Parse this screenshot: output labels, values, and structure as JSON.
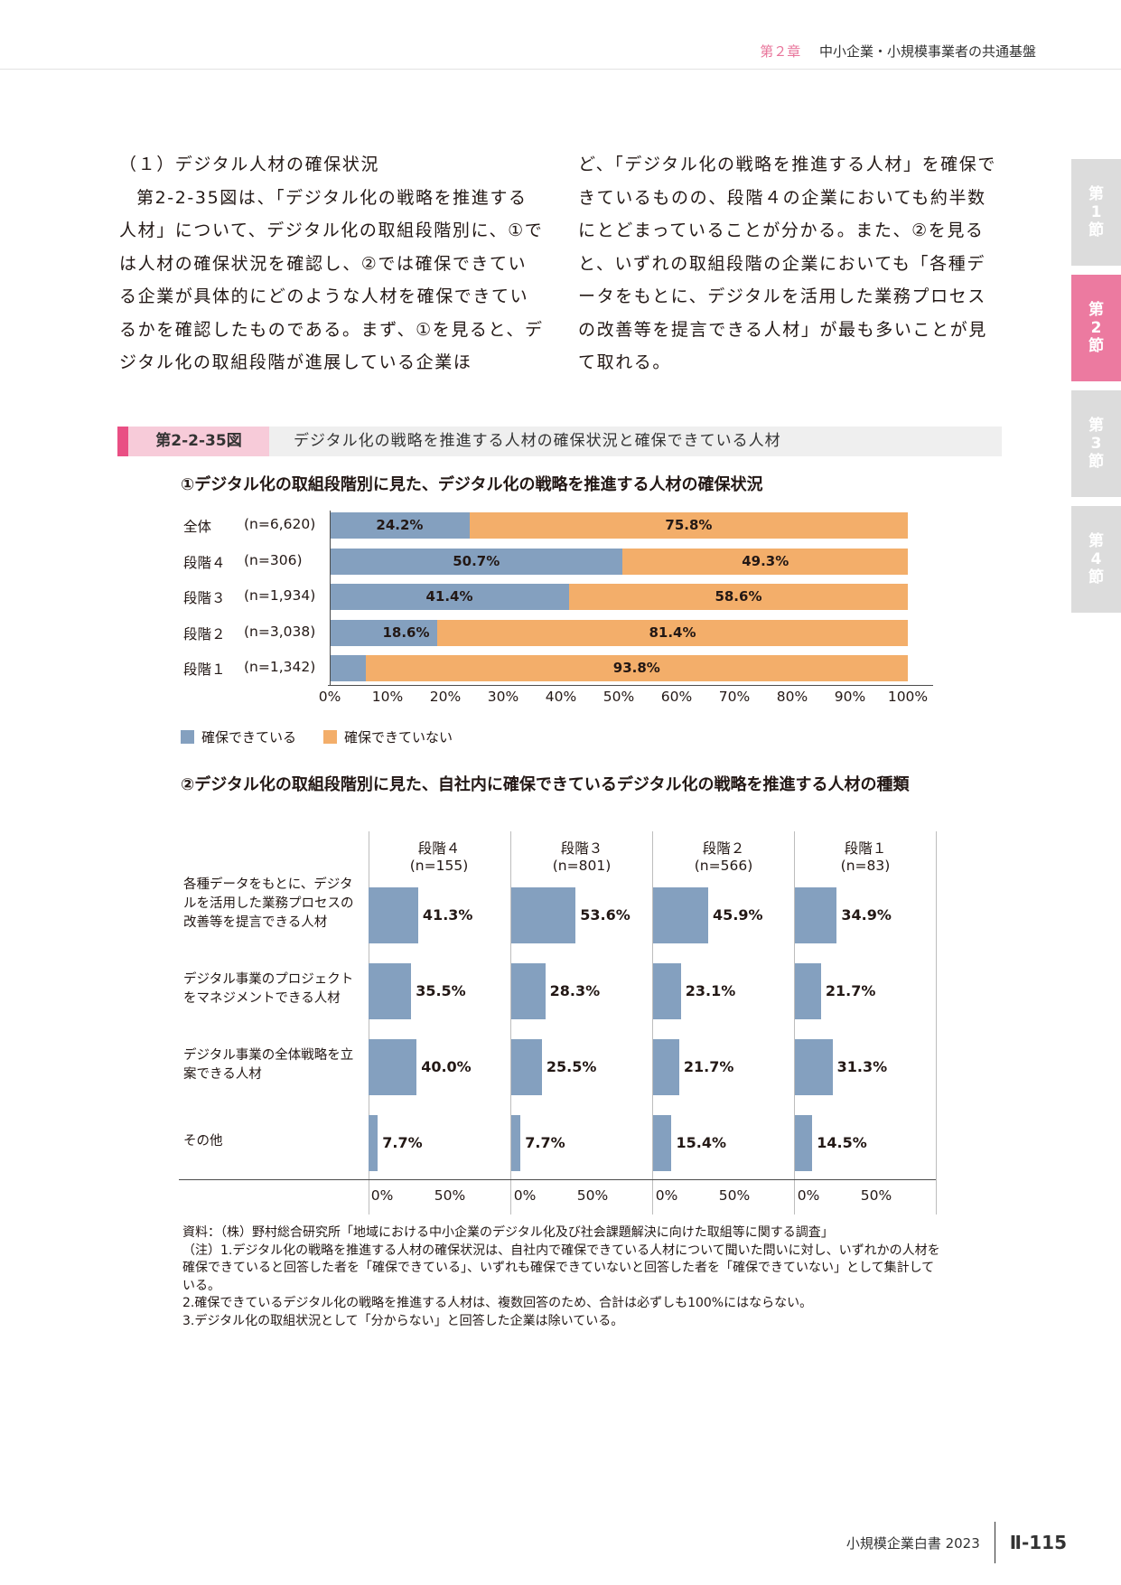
{
  "header": {
    "chapter": "第２章",
    "title": "中小企業・小規模事業者の共通基盤"
  },
  "tabs": [
    {
      "label": "第1節",
      "active": false
    },
    {
      "label": "第2節",
      "active": true
    },
    {
      "label": "第3節",
      "active": false
    },
    {
      "label": "第4節",
      "active": false
    }
  ],
  "body_text": {
    "heading": "（１）デジタル人材の確保状況",
    "left_paragraph": "第2-2-35図は、「デジタル化の戦略を推進する人材」について、デジタル化の取組段階別に、①では人材の確保状況を確認し、②では確保できている企業が具体的にどのような人材を確保できているかを確認したものである。まず、①を見ると、デジタル化の取組段階が進展している企業ほ",
    "right_paragraph": "ど、「デジタル化の戦略を推進する人材」を確保できているものの、段階４の企業においても約半数にとどまっていることが分かる。また、②を見ると、いずれの取組段階の企業においても「各種データをもとに、デジタルを活用した業務プロセスの改善等を提言できる人材」が最も多いことが見て取れる。"
  },
  "figure": {
    "number": "第2-2-35図",
    "title": "デジタル化の戦略を推進する人材の確保状況と確保できている人材"
  },
  "chart_data": [
    {
      "type": "bar",
      "orientation": "horizontal",
      "stacked": true,
      "percent": true,
      "title": "①デジタル化の取組段階別に見た、デジタル化の戦略を推進する人材の確保状況",
      "categories": [
        "全体",
        "段階４",
        "段階３",
        "段階２",
        "段階１"
      ],
      "sample_sizes": [
        "(n=6,620)",
        "(n=306)",
        "(n=1,934)",
        "(n=3,038)",
        "(n=1,342)"
      ],
      "series": [
        {
          "name": "確保できている",
          "color": "#84a0bf",
          "values": [
            24.2,
            50.7,
            41.4,
            18.6,
            6.2
          ],
          "labels": [
            "24.2%",
            "50.7%",
            "41.4%",
            "18.6%",
            ""
          ]
        },
        {
          "name": "確保できていない",
          "color": "#f3ae6a",
          "values": [
            75.8,
            49.3,
            58.6,
            81.4,
            93.8
          ],
          "labels": [
            "75.8%",
            "49.3%",
            "58.6%",
            "81.4%",
            "93.8%"
          ]
        }
      ],
      "xlim": [
        0,
        100
      ],
      "xticks": [
        "0%",
        "10%",
        "20%",
        "30%",
        "40%",
        "50%",
        "60%",
        "70%",
        "80%",
        "90%",
        "100%"
      ],
      "legend": "bottom-left"
    },
    {
      "type": "bar",
      "orientation": "horizontal",
      "panels": true,
      "title": "②デジタル化の取組段階別に見た、自社内に確保できているデジタル化の戦略を推進する人材の種類",
      "categories": [
        "各種データをもとに、デジタルを活用した業務プロセスの改善等を提言できる人材",
        "デジタル事業のプロジェクトをマネジメントできる人材",
        "デジタル事業の全体戦略を立案できる人材",
        "その他"
      ],
      "series": [
        {
          "name": "段階４",
          "n": "(n=155)",
          "values": [
            41.3,
            35.5,
            40.0,
            7.7
          ],
          "labels": [
            "41.3%",
            "35.5%",
            "40.0%",
            "7.7%"
          ]
        },
        {
          "name": "段階３",
          "n": "(n=801)",
          "values": [
            53.6,
            28.3,
            25.5,
            7.7
          ],
          "labels": [
            "53.6%",
            "28.3%",
            "25.5%",
            "7.7%"
          ]
        },
        {
          "name": "段階２",
          "n": "(n=566)",
          "values": [
            45.9,
            23.1,
            21.7,
            15.4
          ],
          "labels": [
            "45.9%",
            "23.1%",
            "21.7%",
            "15.4%"
          ]
        },
        {
          "name": "段階１",
          "n": "(n=83)",
          "values": [
            34.9,
            21.7,
            31.3,
            14.5
          ],
          "labels": [
            "34.9%",
            "21.7%",
            "31.3%",
            "14.5%"
          ]
        }
      ],
      "xlim": [
        0,
        100
      ],
      "xticks": [
        "0%",
        "50%"
      ],
      "color": "#84a0bf"
    }
  ],
  "notes": {
    "source": "資料：（株）野村総合研究所「地域における中小企業のデジタル化及び社会課題解決に向けた取組等に関する調査」",
    "note1": "（注）1.デジタル化の戦略を推進する人材の確保状況は、自社内で確保できている人材について聞いた問いに対し、いずれかの人材を確保できていると回答した者を「確保できている」、いずれも確保できていないと回答した者を「確保できていない」として集計している。",
    "note2": "2.確保できているデジタル化の戦略を推進する人材は、複数回答のため、合計は必ずしも100%にはならない。",
    "note3": "3.デジタル化の取組状況として「分からない」と回答した企業は除いている。"
  },
  "footer": {
    "book": "小規模企業白書 2023",
    "page": "Ⅱ-115"
  }
}
